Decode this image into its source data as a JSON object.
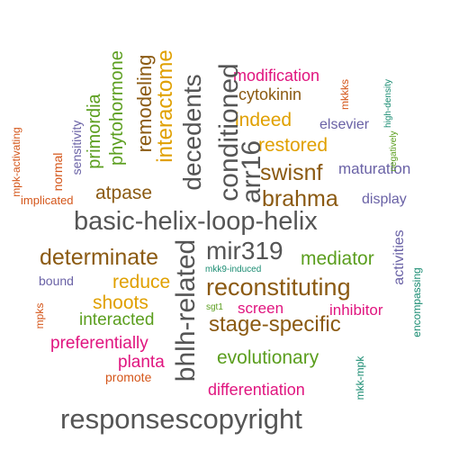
{
  "colors": {
    "dark_gray": "#555555",
    "brown": "#8B5A12",
    "orange_gold": "#E0A000",
    "magenta": "#E0157F",
    "green": "#5B9E1E",
    "slate_blue": "#6A62A6",
    "teal": "#1A8C72",
    "red_orange": "#D4561A"
  },
  "words": {
    "responsescopyright": "responsescopyright",
    "basic_helix_loop_helix": "basic-helix-loop-helix",
    "bhlh_related": "bhlh-related",
    "decedents": "decedents",
    "conditioned": "conditioned",
    "arr16": "arr16",
    "mir319": "mir319",
    "reconstituting": "reconstituting",
    "stage_specific": "stage-specific",
    "swisnf": "swisnf",
    "brahma": "brahma",
    "determinate": "determinate",
    "atpase": "atpase",
    "restored": "restored",
    "indeed": "indeed",
    "reduce": "reduce",
    "shoots": "shoots",
    "interactome": "interactome",
    "remodeling": "remodeling",
    "phytohormone": "phytohormone",
    "primordia": "primordia",
    "modification": "modification",
    "cytokinin": "cytokinin",
    "mediator": "mediator",
    "evolutionary": "evolutionary",
    "preferentially": "preferentially",
    "interacted": "interacted",
    "planta": "planta",
    "differentiation": "differentiation",
    "screen": "screen",
    "inhibitor": "inhibitor",
    "maturation": "maturation",
    "display": "display",
    "elsevier": "elsevier",
    "activities": "activities",
    "promote": "promote",
    "implicated": "implicated",
    "bound": "bound",
    "normal": "normal",
    "sensitivity": "sensitivity",
    "mpk_activating": "mpk-activating",
    "mpks": "mpks",
    "sgt1": "sgt1",
    "mkk9_induced": "mkk9-induced",
    "mkk_mpk": "mkk-mpk",
    "encompassing": "encompassing",
    "negatively": "negatively",
    "high_density": "high-density",
    "mkkks": "mkkks"
  }
}
